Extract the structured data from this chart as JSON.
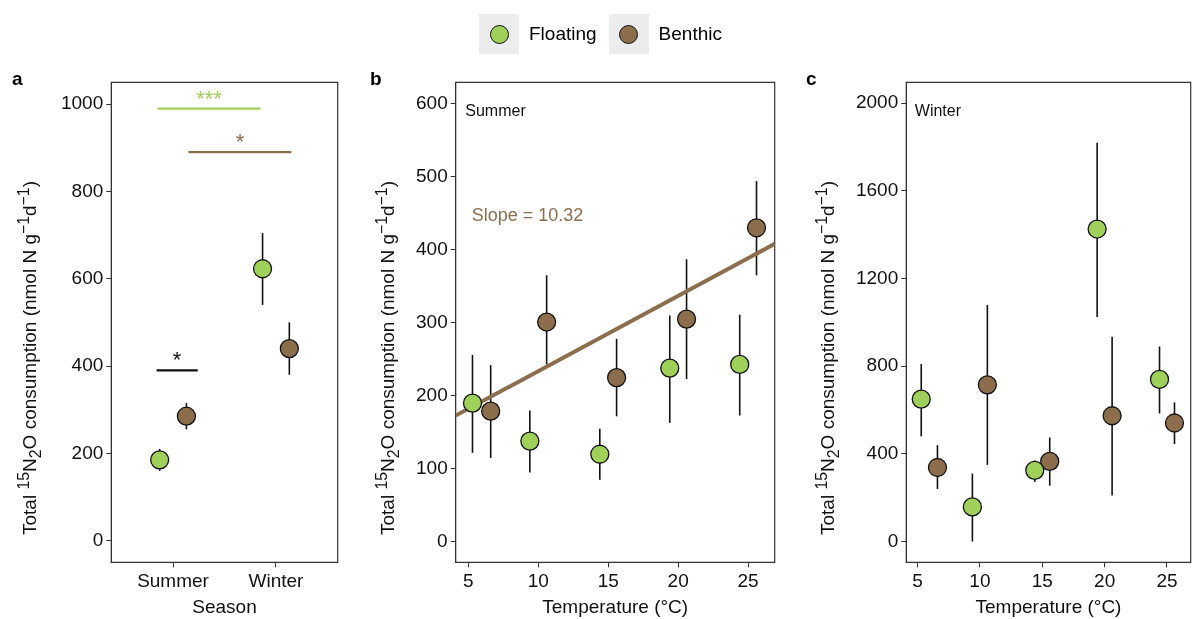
{
  "chart_data": [
    {
      "type": "scatter",
      "title": "a",
      "categories": [
        "Summer",
        "Winter"
      ],
      "xlabel": "Season",
      "ylabel": "Total $^{15}$N$_{2}$O consumption (nmol N g$^{−1}$d$^{−1}$)",
      "ylim": [
        -50,
        1050
      ],
      "yticks": [
        0,
        200,
        400,
        600,
        800,
        1000
      ],
      "legend": "top",
      "marker": "circle",
      "grid": false,
      "annotations": [
        "***",
        "*",
        "*"
      ],
      "series": [
        {
          "name": "Floating",
          "color": "#9fd05a",
          "values": [
            185,
            623
          ],
          "errors": [
            [
              160,
              210
            ],
            [
              540,
              705
            ]
          ]
        },
        {
          "name": "Benthic",
          "color": "#8c6d4c",
          "values": [
            285,
            440
          ],
          "errors": [
            [
              255,
              315
            ],
            [
              380,
              500
            ]
          ]
        }
      ]
    },
    {
      "type": "scatter",
      "title": "b",
      "xlabel": "Temperature (°C)",
      "ylabel": "Total $^{15}$N$_{2}$O consumption (nmol N g$^{−1}$d$^{−1}$)",
      "xlim": [
        4.1,
        26.9
      ],
      "xticks": [
        5,
        10,
        15,
        20,
        25
      ],
      "ylim": [
        -28,
        629
      ],
      "yticks": [
        0,
        100,
        200,
        300,
        400,
        500,
        600
      ],
      "marker": "circle",
      "grid": false,
      "annotations": [
        "Summer",
        "Slope = 10.32"
      ],
      "series": [
        {
          "color": "#9fd05a",
          "x": [
            5.3,
            9.4,
            14.4,
            19.4,
            24.4
          ],
          "values": [
            190,
            138,
            120,
            238,
            243
          ],
          "errors": [
            [
              122,
              256
            ],
            [
              95,
              180
            ],
            [
              85,
              155
            ],
            [
              163,
              310
            ],
            [
              173,
              311
            ]
          ]
        },
        {
          "color": "#8c6d4c",
          "x": [
            6.6,
            10.6,
            15.6,
            20.6,
            25.6
          ],
          "values": [
            179,
            301,
            225,
            305,
            430
          ],
          "errors": [
            [
              115,
              242
            ],
            [
              243,
              365
            ],
            [
              172,
              278
            ],
            [
              223,
              387
            ],
            [
              365,
              494
            ]
          ]
        },
        {
          "type": "line",
          "marker": "none",
          "color": "#8c6d4c",
          "x": [
            4.1,
            26.9
          ],
          "values": [
            173,
            408
          ]
        }
      ]
    },
    {
      "type": "scatter",
      "title": "c",
      "xlabel": "Temperature (°C)",
      "ylabel": "Total $^{15}$N$_{2}$O consumption (nmol N g$^{−1}$d$^{−1}$)",
      "xlim": [
        4.1,
        26.9
      ],
      "xticks": [
        5,
        10,
        15,
        20,
        25
      ],
      "ylim": [
        -95,
        2095
      ],
      "yticks": [
        0,
        400,
        800,
        1200,
        1600,
        2000
      ],
      "marker": "circle",
      "grid": false,
      "annotations": [
        "Winter"
      ],
      "series": [
        {
          "color": "#9fd05a",
          "x": [
            5.3,
            9.4,
            14.4,
            19.4,
            24.4
          ],
          "values": [
            650,
            158,
            325,
            1426,
            740
          ],
          "errors": [
            [
              480,
              810
            ],
            [
              0,
              310
            ],
            [
              272,
              370
            ],
            [
              1025,
              1820
            ],
            [
              585,
              890
            ]
          ]
        },
        {
          "color": "#8c6d4c",
          "x": [
            6.6,
            10.6,
            15.6,
            20.6,
            25.6
          ],
          "values": [
            338,
            715,
            366,
            574,
            541
          ],
          "errors": [
            [
              240,
              440
            ],
            [
              350,
              1080
            ],
            [
              255,
              475
            ],
            [
              210,
              935
            ],
            [
              445,
              635
            ]
          ]
        }
      ]
    }
  ]
}
